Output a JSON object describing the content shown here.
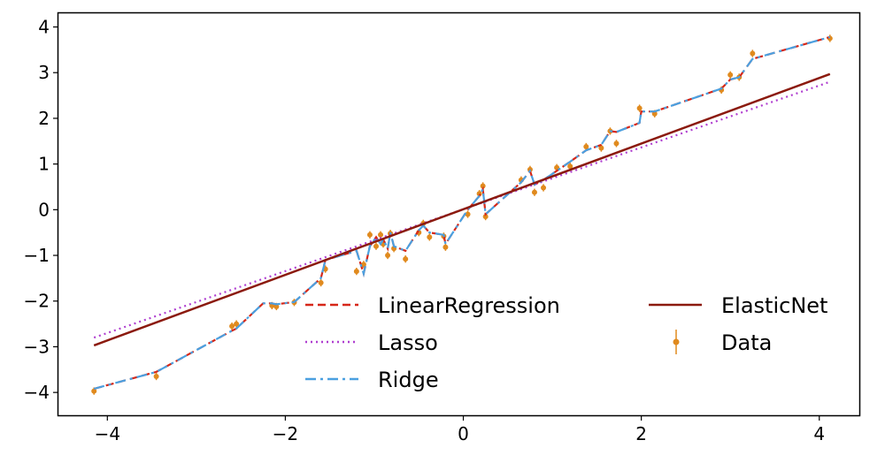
{
  "chart_data": {
    "type": "line",
    "title": "",
    "xlabel": "",
    "ylabel": "",
    "xlim": [
      -4.55,
      4.45
    ],
    "ylim": [
      -4.5,
      4.3
    ],
    "x_ticks": [
      -4,
      -2,
      0,
      2,
      4
    ],
    "y_ticks": [
      -4,
      -3,
      -2,
      -1,
      0,
      1,
      2,
      3,
      4
    ],
    "x_tick_labels": [
      "−4",
      "−2",
      "0",
      "2",
      "4"
    ],
    "y_tick_labels": [
      "−4",
      "−3",
      "−2",
      "−1",
      "0",
      "1",
      "2",
      "3",
      "4"
    ],
    "grid": false,
    "legend_position": "lower-right",
    "data_points": {
      "name": "Data",
      "color": "#e08a1e",
      "error": 0.08,
      "x": [
        -4.15,
        -3.45,
        -2.6,
        -2.55,
        -2.15,
        -2.1,
        -1.9,
        -1.6,
        -1.55,
        -1.2,
        -1.12,
        -1.05,
        -0.98,
        -0.93,
        -0.9,
        -0.85,
        -0.82,
        -0.78,
        -0.65,
        -0.5,
        -0.45,
        -0.38,
        -0.22,
        -0.2,
        0.05,
        0.18,
        0.22,
        0.25,
        0.65,
        0.75,
        0.8,
        0.9,
        1.05,
        1.2,
        1.38,
        1.55,
        1.65,
        1.72,
        1.98,
        2.15,
        2.9,
        3.0,
        3.1,
        3.25,
        4.12
      ],
      "y": [
        -3.97,
        -3.65,
        -2.55,
        -2.5,
        -2.1,
        -2.12,
        -2.03,
        -1.6,
        -1.3,
        -1.35,
        -1.2,
        -0.55,
        -0.8,
        -0.55,
        -0.75,
        -1.0,
        -0.52,
        -0.85,
        -1.08,
        -0.5,
        -0.3,
        -0.6,
        -0.58,
        -0.82,
        -0.1,
        0.35,
        0.52,
        -0.15,
        0.65,
        0.88,
        0.38,
        0.48,
        0.92,
        0.95,
        1.38,
        1.35,
        1.72,
        1.45,
        2.22,
        2.1,
        2.62,
        2.95,
        2.9,
        3.42,
        3.75
      ]
    },
    "series": [
      {
        "name": "LinearRegression",
        "style": "dashed",
        "color": "#d62718",
        "x": [
          -4.15,
          -3.45,
          -2.6,
          -2.55,
          -2.25,
          -2.15,
          -2.1,
          -1.9,
          -1.6,
          -1.55,
          -1.2,
          -1.12,
          -1.05,
          -0.98,
          -0.93,
          -0.9,
          -0.85,
          -0.82,
          -0.78,
          -0.65,
          -0.5,
          -0.45,
          -0.38,
          -0.22,
          -0.2,
          0.05,
          0.18,
          0.22,
          0.25,
          0.65,
          0.75,
          0.8,
          0.9,
          1.05,
          1.2,
          1.38,
          1.55,
          1.65,
          1.72,
          1.98,
          2.0,
          2.15,
          2.9,
          3.0,
          3.1,
          3.25,
          4.12
        ],
        "y": [
          -3.92,
          -3.55,
          -2.65,
          -2.6,
          -2.05,
          -2.05,
          -2.07,
          -2.02,
          -1.5,
          -1.1,
          -0.9,
          -1.4,
          -0.8,
          -0.6,
          -0.75,
          -0.65,
          -0.85,
          -0.5,
          -0.8,
          -0.9,
          -0.45,
          -0.35,
          -0.5,
          -0.55,
          -0.75,
          0.0,
          0.3,
          0.45,
          -0.1,
          0.6,
          0.85,
          0.55,
          0.65,
          0.85,
          1.05,
          1.3,
          1.42,
          1.72,
          1.7,
          1.9,
          2.15,
          2.15,
          2.65,
          2.85,
          2.9,
          3.3,
          3.78
        ]
      },
      {
        "name": "Lasso",
        "style": "dotted",
        "color": "#b03fd0",
        "x": [
          -4.15,
          4.12
        ],
        "y": [
          -2.8,
          2.8
        ]
      },
      {
        "name": "Ridge",
        "style": "dashdot",
        "color": "#4ba0e0",
        "x": [
          -4.15,
          -3.45,
          -2.6,
          -2.55,
          -2.25,
          -2.15,
          -2.1,
          -1.9,
          -1.6,
          -1.55,
          -1.2,
          -1.12,
          -1.05,
          -0.98,
          -0.93,
          -0.9,
          -0.85,
          -0.82,
          -0.78,
          -0.65,
          -0.5,
          -0.45,
          -0.38,
          -0.22,
          -0.2,
          0.05,
          0.18,
          0.22,
          0.25,
          0.65,
          0.75,
          0.8,
          0.9,
          1.05,
          1.2,
          1.38,
          1.55,
          1.65,
          1.72,
          1.98,
          2.0,
          2.15,
          2.9,
          3.0,
          3.1,
          3.25,
          4.12
        ],
        "y": [
          -3.92,
          -3.55,
          -2.65,
          -2.6,
          -2.05,
          -2.05,
          -2.07,
          -2.02,
          -1.5,
          -1.1,
          -0.9,
          -1.4,
          -0.8,
          -0.6,
          -0.75,
          -0.65,
          -0.85,
          -0.5,
          -0.8,
          -0.9,
          -0.45,
          -0.35,
          -0.5,
          -0.55,
          -0.75,
          0.0,
          0.3,
          0.45,
          -0.1,
          0.6,
          0.85,
          0.55,
          0.65,
          0.85,
          1.05,
          1.3,
          1.42,
          1.72,
          1.7,
          1.9,
          2.15,
          2.15,
          2.65,
          2.85,
          2.9,
          3.3,
          3.78
        ]
      },
      {
        "name": "ElasticNet",
        "style": "solid",
        "color": "#8b1a0e",
        "x": [
          -4.15,
          4.12
        ],
        "y": [
          -2.97,
          2.97
        ]
      }
    ],
    "legend": [
      {
        "label": "LinearRegression",
        "style": "dashed",
        "color": "#d62718"
      },
      {
        "label": "ElasticNet",
        "style": "solid",
        "color": "#8b1a0e"
      },
      {
        "label": "Lasso",
        "style": "dotted",
        "color": "#b03fd0"
      },
      {
        "label": "Data",
        "style": "marker",
        "color": "#e08a1e"
      },
      {
        "label": "Ridge",
        "style": "dashdot",
        "color": "#4ba0e0"
      }
    ]
  }
}
